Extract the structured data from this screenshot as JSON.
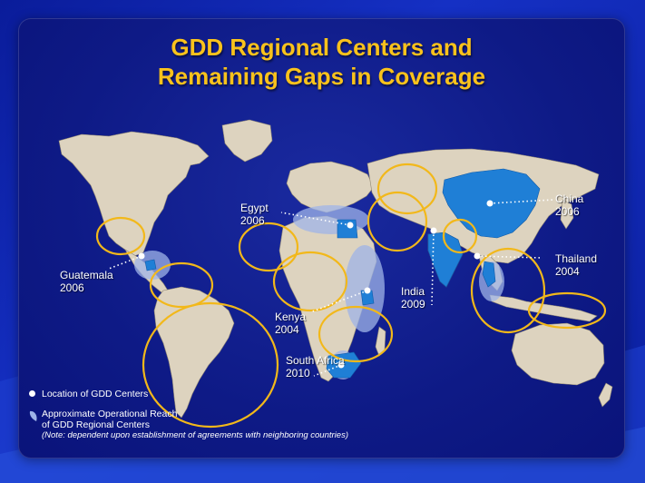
{
  "title": {
    "line1": "GDD Regional Centers and",
    "line2": "Remaining Gaps in Coverage"
  },
  "centers": [
    {
      "name": "Guatemala",
      "year": "2006"
    },
    {
      "name": "Egypt",
      "year": "2006"
    },
    {
      "name": "Kenya",
      "year": "2004"
    },
    {
      "name": "South Africa",
      "year": "2010"
    },
    {
      "name": "India",
      "year": "2009"
    },
    {
      "name": "China",
      "year": "2006"
    },
    {
      "name": "Thailand",
      "year": "2004"
    }
  ],
  "legend": {
    "location": "Location of GDD Centers",
    "reach_line1": "Approximate Operational Reach",
    "reach_line2": "of GDD Regional Centers",
    "note": "(Note: dependent upon establishment of agreements with neighboring countries)"
  },
  "colors": {
    "title": "#f9c21c",
    "gap_circle": "#f2b81a",
    "land": "#ddd3bf",
    "covered_country": "#1f7fd6",
    "reach": "#9fb4e8",
    "center_dot": "#ffffff"
  }
}
